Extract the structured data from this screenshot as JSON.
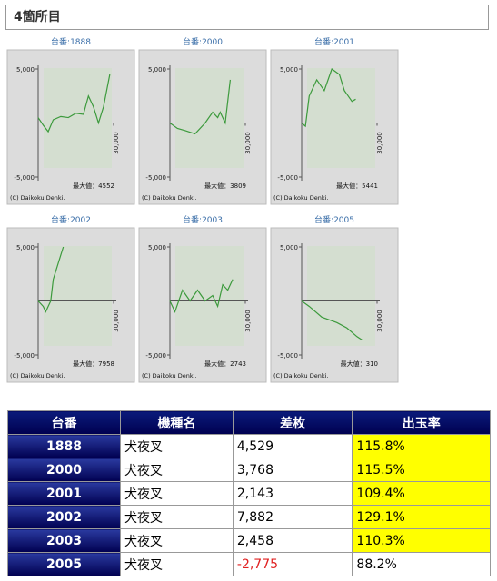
{
  "header": {
    "title": "4箇所目"
  },
  "chart_axes": {
    "ylim": [
      -5000,
      5000
    ],
    "xlim": [
      0,
      30000
    ],
    "yticks": [
      {
        "value": 5000,
        "label": "5,000"
      },
      {
        "value": -5000,
        "label": "-5,000"
      }
    ],
    "xticks": [
      {
        "value": 30000,
        "label": "30,000"
      }
    ],
    "copyright": "(C) Daikoku Denki.",
    "color": "#3c9a3c"
  },
  "charts": [
    {
      "type": "line",
      "title": "台番:1888",
      "max_text": "最大値：4552",
      "x": [
        0,
        2000,
        4000,
        6000,
        9000,
        12000,
        15000,
        18000,
        20000,
        22000,
        24000,
        26000,
        28500
      ],
      "values": [
        500,
        -200,
        -800,
        300,
        600,
        500,
        900,
        800,
        2500,
        1500,
        0,
        1500,
        4500
      ]
    },
    {
      "type": "line",
      "title": "台番:2000",
      "max_text": "最大値：3809",
      "x": [
        0,
        3000,
        6000,
        10000,
        14000,
        17000,
        19000,
        20000,
        22000,
        24000
      ],
      "values": [
        0,
        -500,
        -700,
        -1000,
        0,
        1000,
        500,
        1000,
        0,
        4000
      ]
    },
    {
      "type": "line",
      "title": "台番:2001",
      "max_text": "最大値：5441",
      "x": [
        0,
        1500,
        3000,
        6000,
        9000,
        12000,
        15000,
        17000,
        20000,
        21500
      ],
      "values": [
        0,
        -300,
        2500,
        4000,
        3000,
        5000,
        4500,
        3000,
        2000,
        2200
      ]
    },
    {
      "type": "line",
      "title": "台番:2002",
      "max_text": "最大値：7958",
      "x": [
        0,
        2000,
        3000,
        5000,
        6000,
        8000,
        10000
      ],
      "values": [
        0,
        -500,
        -1000,
        0,
        2000,
        3500,
        5000
      ]
    },
    {
      "type": "line",
      "title": "台番:2003",
      "max_text": "最大値：2743",
      "x": [
        0,
        2000,
        5000,
        8000,
        11000,
        14000,
        17000,
        19000,
        21000,
        23000,
        25000
      ],
      "values": [
        0,
        -1000,
        1000,
        0,
        1000,
        0,
        500,
        -500,
        1500,
        1000,
        2000
      ]
    },
    {
      "type": "line",
      "title": "台番:2005",
      "max_text": "最大値：310",
      "x": [
        0,
        3000,
        8000,
        14000,
        18000,
        22000,
        24000
      ],
      "values": [
        0,
        -500,
        -1500,
        -2000,
        -2500,
        -3300,
        -3600
      ]
    }
  ],
  "table": {
    "header": [
      "台番",
      "機種名",
      "差枚",
      "出玉率"
    ],
    "rows": [
      [
        "1888",
        "犬夜叉",
        "4,529",
        "115.8%"
      ],
      [
        "2000",
        "犬夜叉",
        "3,768",
        "115.5%"
      ],
      [
        "2001",
        "犬夜叉",
        "2,143",
        "109.4%"
      ],
      [
        "2002",
        "犬夜叉",
        "7,882",
        "129.1%"
      ],
      [
        "2003",
        "犬夜叉",
        "2,458",
        "110.3%"
      ],
      [
        "2005",
        "犬夜叉",
        "-2,775",
        "88.2%"
      ]
    ]
  }
}
